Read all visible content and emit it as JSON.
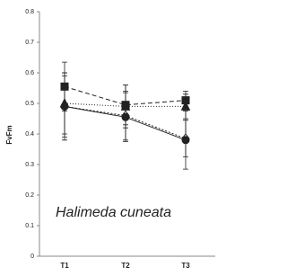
{
  "chart_data": {
    "type": "line",
    "ylabel": "FvFm",
    "annotation": "Halimeda cuneata",
    "categories": [
      "T1",
      "T2",
      "T3"
    ],
    "ylim": [
      0,
      0.8
    ],
    "yticks": [
      0,
      0.1,
      0.2,
      0.3,
      0.4,
      0.5,
      0.6,
      0.7,
      0.8
    ],
    "series": [
      {
        "color": "#222222",
        "marker": "square",
        "dash": "5,3",
        "values": [
          0.555,
          0.495,
          0.51
        ],
        "errors": [
          0.08,
          0.065,
          0.03
        ]
      },
      {
        "color": "#222222",
        "marker": "triangle",
        "dash": "1,2",
        "values": [
          0.5,
          0.49,
          0.49
        ],
        "errors": [
          0.1,
          0.07,
          0.04
        ]
      },
      {
        "color": "#222222",
        "marker": "diamond-open",
        "dash": "2,2",
        "values": [
          0.49,
          0.46,
          0.385
        ],
        "errors": [
          0.1,
          0.08,
          0.06
        ]
      },
      {
        "color": "#222222",
        "marker": "circle",
        "dash": "none",
        "values": [
          0.49,
          0.455,
          0.38
        ],
        "errors": [
          0.11,
          0.08,
          0.095
        ]
      }
    ]
  }
}
